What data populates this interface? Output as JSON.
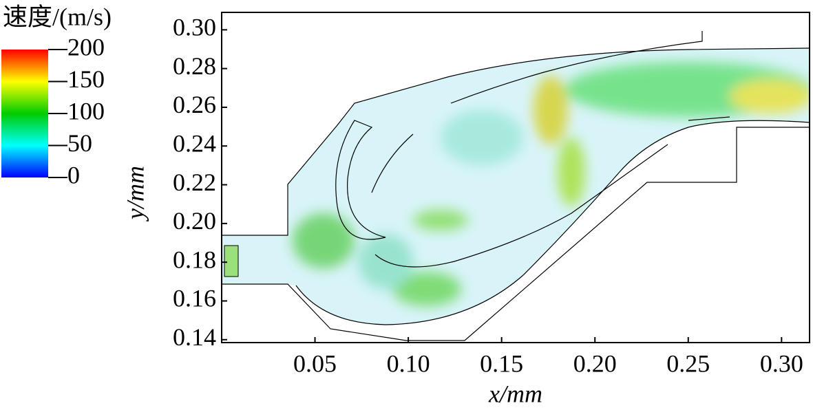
{
  "chart_data": {
    "type": "vector-field",
    "x_label": "x/mm",
    "y_label": "y/mm",
    "xlim": [
      0,
      0.315
    ],
    "ylim": [
      0.1385,
      0.309
    ],
    "xticks": [
      0.05,
      {
        "value": 0.1,
        "label": "0.10"
      },
      0.15,
      {
        "value": 0.2,
        "label": "0.20"
      },
      0.25,
      {
        "value": 0.3,
        "label": "0.30"
      }
    ],
    "yticks": [
      0.14,
      0.16,
      0.18,
      {
        "value": 0.2,
        "label": "0.20"
      },
      0.22,
      0.24,
      0.26,
      0.28,
      {
        "value": 0.3,
        "label": "0.30"
      }
    ],
    "colorbar": {
      "title": "速度/(m/s)",
      "lim": [
        0,
        200
      ],
      "ticks": [
        0,
        50,
        100,
        150,
        200
      ],
      "colors": [
        "#0000ff",
        "#00ffff",
        "#00cc00",
        "#ffff00",
        "#ff0000"
      ]
    }
  }
}
